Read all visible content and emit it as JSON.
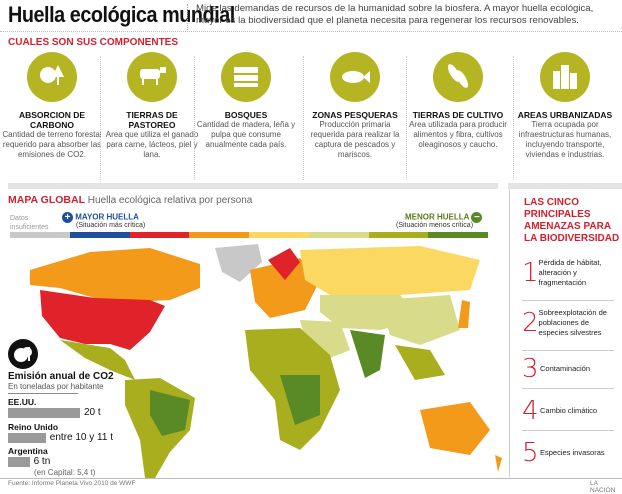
{
  "header": {
    "title": "Huella ecológica mundial",
    "description": "Mide las demandas de recursos de la humanidad sobre la biosfera. A mayor huella ecológica, mayor es la biodiversidad que el planeta necesita para regenerar los recursos renovables."
  },
  "components": {
    "title": "CUALES SON SUS COMPONENTES",
    "items": [
      {
        "icon": "tree-cloud-icon",
        "title": "ABSORCION DE CARBONO",
        "text": "Cantidad de terreno forestal requerido para absorber las emisiones de CO2."
      },
      {
        "icon": "cow-icon",
        "title": "TIERRAS DE PASTOREO",
        "text": "Area que utiliza el ganado para carne, lácteos, piel y lana."
      },
      {
        "icon": "wood-logs-icon",
        "title": "BOSQUES",
        "text": "Cantidad de madera, leña y pulpa que consume anualmente cada país."
      },
      {
        "icon": "fish-icon",
        "title": "ZONAS PESQUERAS",
        "text": "Producción primaria requerida para realizar la captura de pescados y mariscos."
      },
      {
        "icon": "crop-pods-icon",
        "title": "TIERRAS DE CULTIVO",
        "text": "Area utilizada para producir alimentos y fibra, cultivos oleaginosos y caucho."
      },
      {
        "icon": "buildings-icon",
        "title": "AREAS URBANIZADAS",
        "text": "Tierra ocupada por infraestructuras humanas, incluyendo transporte, viviendas e industrias."
      }
    ]
  },
  "map": {
    "title": "MAPA GLOBAL",
    "subtitle": "Huella ecológica relativa por persona",
    "legend": {
      "no_data": "Datos insuficientes",
      "high": "MAYOR HUELLA",
      "high_sub": "(Situación más crítica)",
      "low": "MENOR HUELLA",
      "low_sub": "(Situación menos crítica)",
      "colors": [
        "#c8c8c8",
        "#1f4e9a",
        "#e0232a",
        "#f39a1a",
        "#fbd862",
        "#d8dc8a",
        "#a8ae1e",
        "#5a8a25"
      ]
    }
  },
  "co2": {
    "icon": "co2-cloud-icon",
    "title": "Emisión anual de CO2",
    "subtitle": "En toneladas por habitante",
    "rows": [
      {
        "country": "EE.UU.",
        "value": "20 t",
        "tons": 20
      },
      {
        "country": "Reino Unido",
        "value": "entre 10 y 11 t",
        "tons": 10.5
      },
      {
        "country": "Argentina",
        "value": "6 tn",
        "tons": 6,
        "note": "(en Capital: 5,4 t)"
      }
    ]
  },
  "threats": {
    "title": "LAS CINCO PRINCIPALES AMENAZAS PARA LA BIODIVERSIDAD",
    "items": [
      {
        "n": "1",
        "text": "Pérdida de hábitat, alteración y fragmentación"
      },
      {
        "n": "2",
        "text": "Sobreexplotación de poblaciones de especies silvestres"
      },
      {
        "n": "3",
        "text": "Contaminación"
      },
      {
        "n": "4",
        "text": "Cambio climático"
      },
      {
        "n": "5",
        "text": "Especies invasoras"
      }
    ]
  },
  "footer": {
    "source": "Fuente: Informe Planeta Vivo 2010 de WWF",
    "brand": "LA NACION"
  }
}
